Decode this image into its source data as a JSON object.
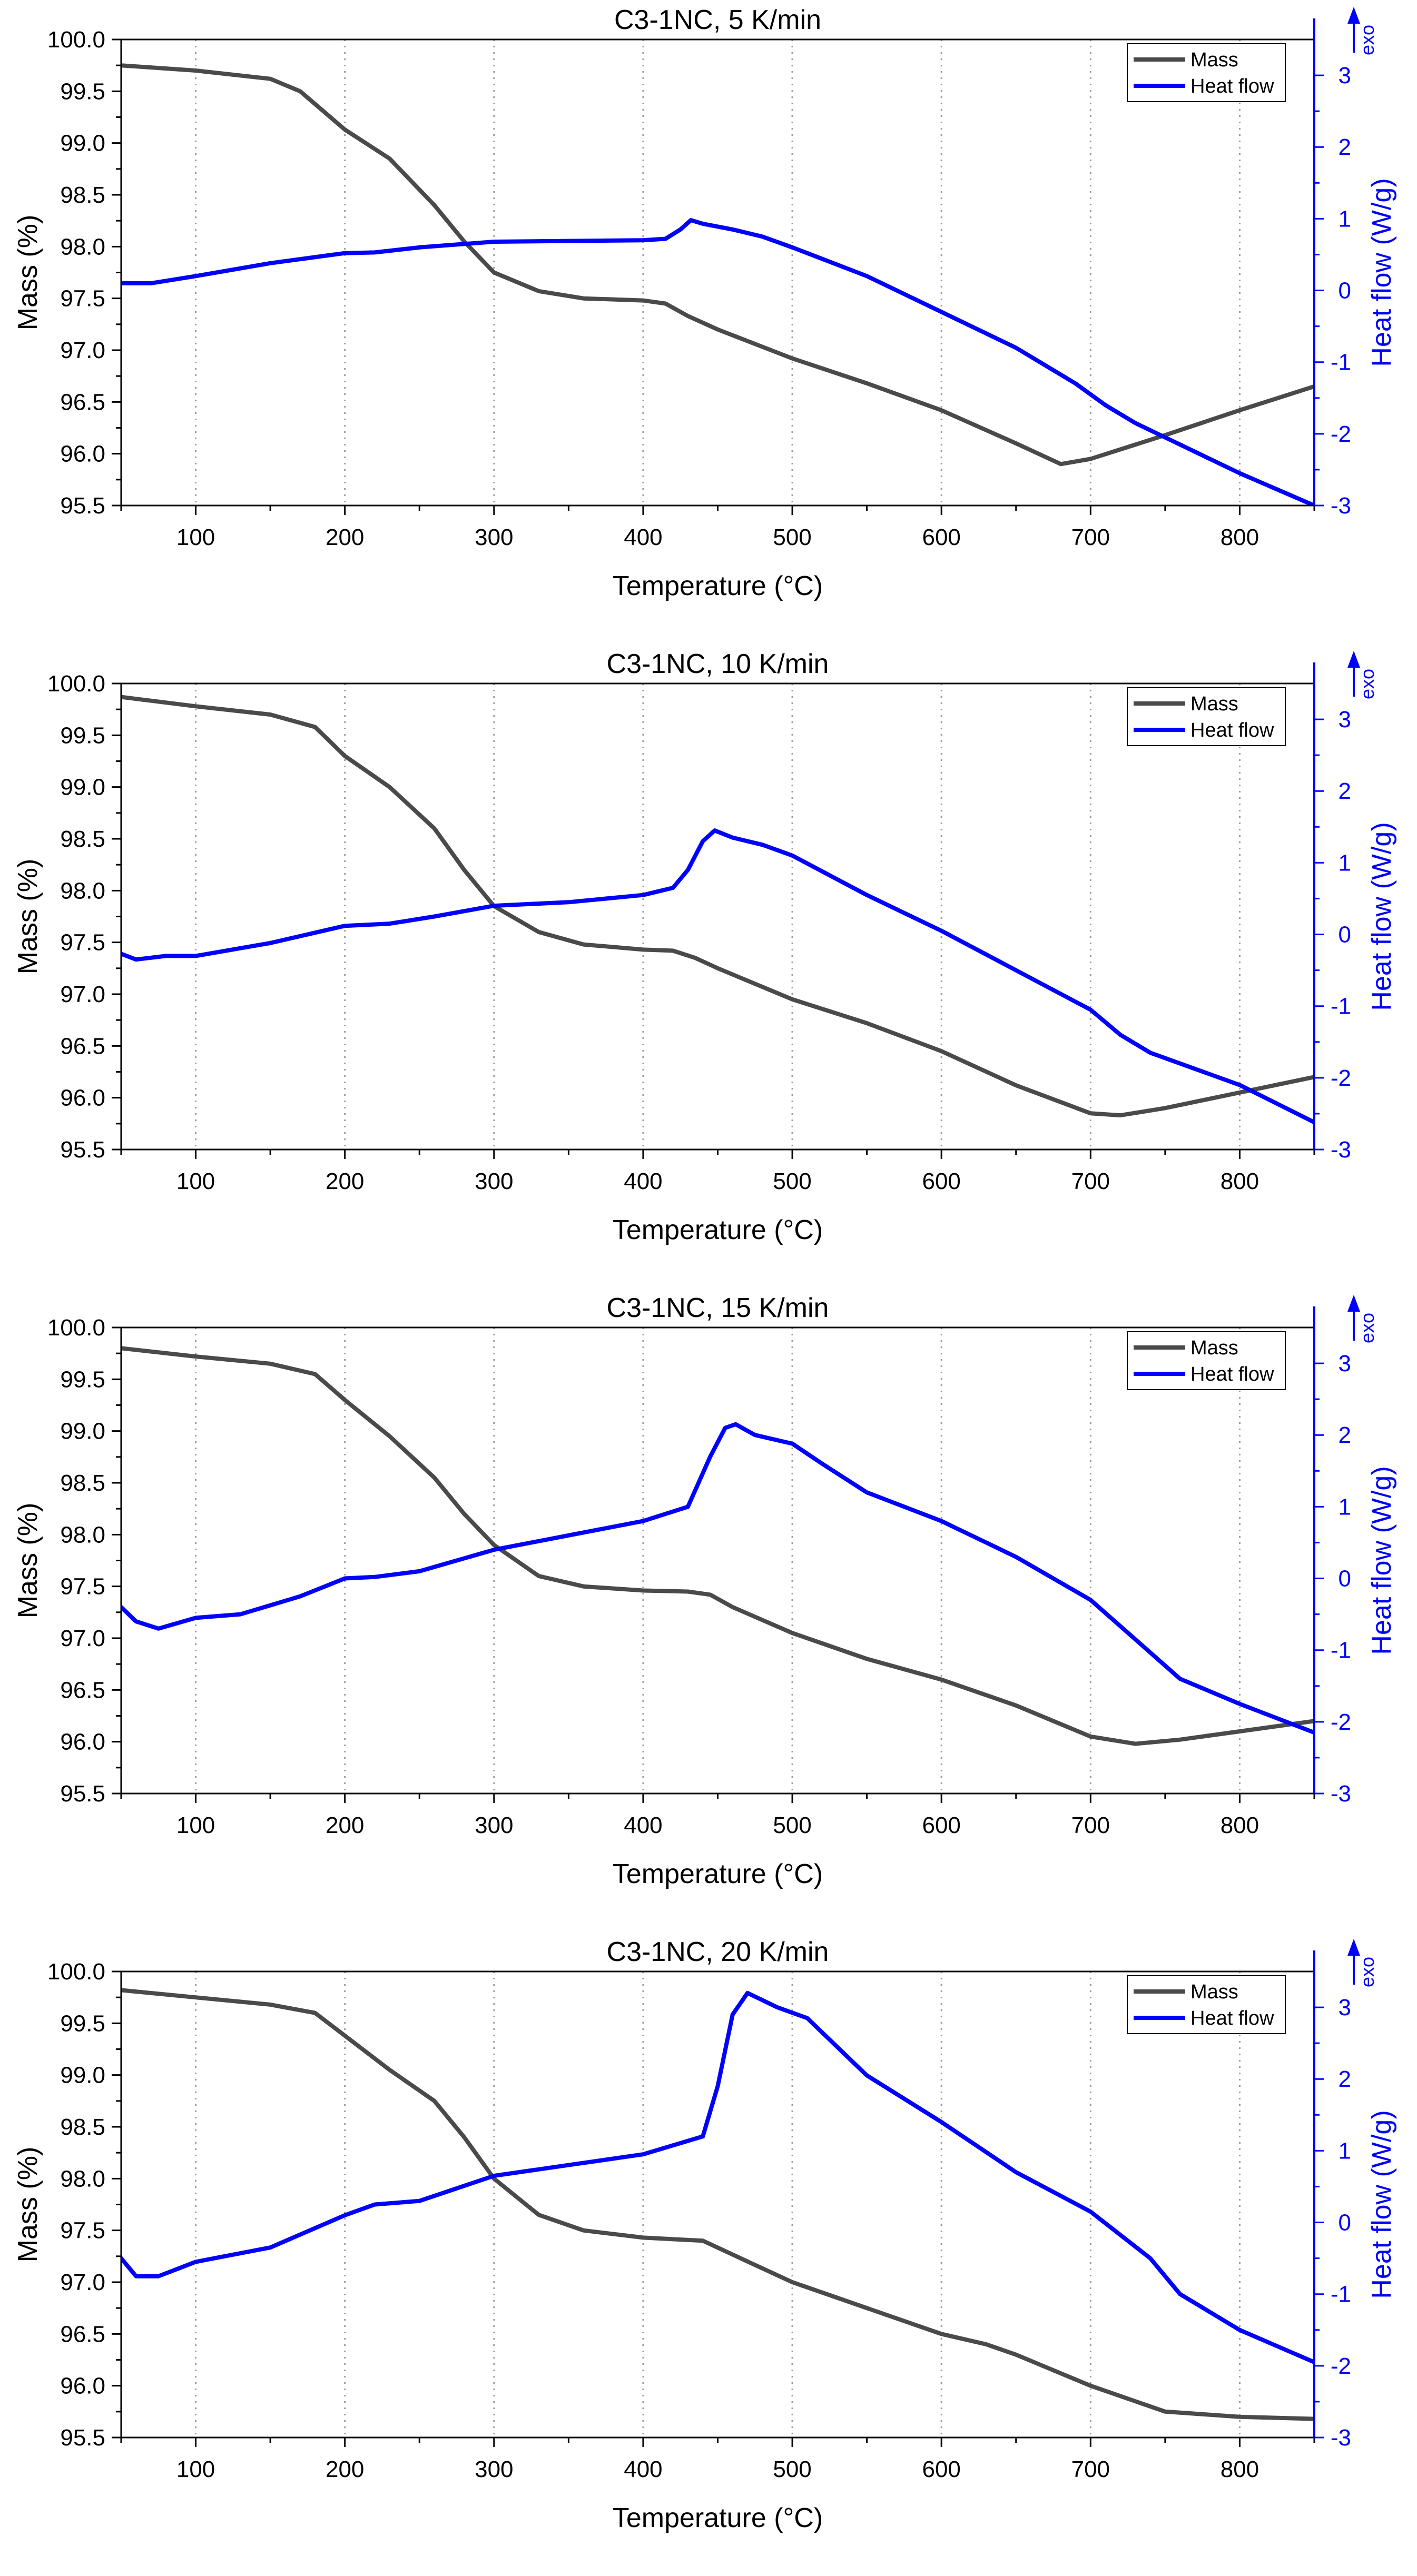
{
  "colors": {
    "mass": "#4a4a4a",
    "heat": "#0000ff",
    "axis": "#000000",
    "grid": "#9a9a9a"
  },
  "chart_data": [
    {
      "type": "line",
      "title": "C3-1NC, 5 K/min",
      "xlabel": "Temperature (°C)",
      "ylabel_left": "Mass (%)",
      "ylabel_right": "Heat flow (W/g)",
      "exo_label": "exo",
      "xlim": [
        50,
        850
      ],
      "ylim_left": [
        95.5,
        100.0
      ],
      "ylim_right": [
        -3,
        3.5
      ],
      "x_ticks": [
        100,
        200,
        300,
        400,
        500,
        600,
        700,
        800
      ],
      "y_left_ticks": [
        "95.5",
        "96.0",
        "96.5",
        "97.0",
        "97.5",
        "98.0",
        "98.5",
        "99.0",
        "99.5",
        "100.0"
      ],
      "y_right_ticks": [
        "-3",
        "-2",
        "-1",
        "0",
        "1",
        "2",
        "3"
      ],
      "grid": "vertical dotted",
      "legend_position": "top-right",
      "series": [
        {
          "name": "Mass",
          "axis": "left",
          "color": "#4a4a4a",
          "x": [
            50,
            100,
            150,
            170,
            200,
            230,
            260,
            280,
            300,
            330,
            360,
            400,
            415,
            430,
            450,
            500,
            550,
            600,
            650,
            680,
            700,
            750,
            800,
            850
          ],
          "y": [
            99.75,
            99.7,
            99.62,
            99.5,
            99.13,
            98.85,
            98.4,
            98.05,
            97.75,
            97.57,
            97.5,
            97.48,
            97.45,
            97.33,
            97.2,
            96.92,
            96.68,
            96.42,
            96.1,
            95.9,
            95.95,
            96.18,
            96.42,
            96.65
          ]
        },
        {
          "name": "Heat flow",
          "axis": "right",
          "color": "#0000ff",
          "x": [
            50,
            70,
            100,
            150,
            200,
            220,
            250,
            300,
            350,
            400,
            415,
            425,
            432,
            440,
            460,
            480,
            500,
            550,
            600,
            650,
            690,
            710,
            730,
            750,
            800,
            850
          ],
          "y": [
            0.1,
            0.1,
            0.2,
            0.38,
            0.52,
            0.53,
            0.6,
            0.68,
            0.69,
            0.7,
            0.72,
            0.85,
            0.98,
            0.93,
            0.85,
            0.75,
            0.6,
            0.2,
            -0.3,
            -0.8,
            -1.3,
            -1.6,
            -1.85,
            -2.05,
            -2.55,
            -3.0
          ]
        }
      ]
    },
    {
      "type": "line",
      "title": "C3-1NC, 10 K/min",
      "xlabel": "Temperature (°C)",
      "ylabel_left": "Mass (%)",
      "ylabel_right": "Heat flow (W/g)",
      "exo_label": "exo",
      "xlim": [
        50,
        850
      ],
      "ylim_left": [
        95.5,
        100.0
      ],
      "ylim_right": [
        -3,
        3.5
      ],
      "x_ticks": [
        100,
        200,
        300,
        400,
        500,
        600,
        700,
        800
      ],
      "y_left_ticks": [
        "95.5",
        "96.0",
        "96.5",
        "97.0",
        "97.5",
        "98.0",
        "98.5",
        "99.0",
        "99.5",
        "100.0"
      ],
      "y_right_ticks": [
        "-3",
        "-2",
        "-1",
        "0",
        "1",
        "2",
        "3"
      ],
      "grid": "vertical dotted",
      "legend_position": "top-right",
      "series": [
        {
          "name": "Mass",
          "axis": "left",
          "color": "#4a4a4a",
          "x": [
            50,
            100,
            150,
            180,
            200,
            230,
            260,
            280,
            300,
            330,
            360,
            400,
            420,
            435,
            450,
            500,
            550,
            600,
            650,
            700,
            720,
            750,
            800,
            850
          ],
          "y": [
            99.87,
            99.78,
            99.7,
            99.58,
            99.3,
            99.0,
            98.6,
            98.2,
            97.85,
            97.6,
            97.48,
            97.43,
            97.42,
            97.35,
            97.25,
            96.95,
            96.72,
            96.45,
            96.12,
            95.85,
            95.83,
            95.9,
            96.05,
            96.2
          ]
        },
        {
          "name": "Heat flow",
          "axis": "right",
          "color": "#0000ff",
          "x": [
            50,
            60,
            80,
            100,
            150,
            200,
            230,
            260,
            300,
            350,
            400,
            420,
            430,
            440,
            448,
            460,
            480,
            500,
            550,
            600,
            650,
            700,
            720,
            740,
            800,
            850
          ],
          "y": [
            -0.27,
            -0.35,
            -0.3,
            -0.3,
            -0.12,
            0.12,
            0.15,
            0.25,
            0.4,
            0.45,
            0.55,
            0.65,
            0.9,
            1.3,
            1.45,
            1.35,
            1.25,
            1.1,
            0.55,
            0.05,
            -0.5,
            -1.05,
            -1.4,
            -1.65,
            -2.1,
            -2.62
          ]
        }
      ]
    },
    {
      "type": "line",
      "title": "C3-1NC, 15 K/min",
      "xlabel": "Temperature (°C)",
      "ylabel_left": "Mass (%)",
      "ylabel_right": "Heat flow (W/g)",
      "exo_label": "exo",
      "xlim": [
        50,
        850
      ],
      "ylim_left": [
        95.5,
        100.0
      ],
      "ylim_right": [
        -3,
        3.5
      ],
      "x_ticks": [
        100,
        200,
        300,
        400,
        500,
        600,
        700,
        800
      ],
      "y_left_ticks": [
        "95.5",
        "96.0",
        "96.5",
        "97.0",
        "97.5",
        "98.0",
        "98.5",
        "99.0",
        "99.5",
        "100.0"
      ],
      "y_right_ticks": [
        "-3",
        "-2",
        "-1",
        "0",
        "1",
        "2",
        "3"
      ],
      "grid": "vertical dotted",
      "legend_position": "top-right",
      "series": [
        {
          "name": "Mass",
          "axis": "left",
          "color": "#4a4a4a",
          "x": [
            50,
            100,
            150,
            180,
            200,
            230,
            260,
            280,
            300,
            330,
            360,
            400,
            430,
            445,
            460,
            500,
            550,
            600,
            650,
            700,
            730,
            760,
            800,
            850
          ],
          "y": [
            99.8,
            99.72,
            99.65,
            99.55,
            99.3,
            98.95,
            98.55,
            98.2,
            97.9,
            97.6,
            97.5,
            97.46,
            97.45,
            97.42,
            97.3,
            97.05,
            96.8,
            96.6,
            96.35,
            96.05,
            95.98,
            96.02,
            96.1,
            96.2
          ]
        },
        {
          "name": "Heat flow",
          "axis": "right",
          "color": "#0000ff",
          "x": [
            50,
            60,
            75,
            100,
            130,
            170,
            200,
            220,
            250,
            300,
            350,
            400,
            430,
            445,
            455,
            462,
            475,
            500,
            520,
            550,
            600,
            650,
            700,
            730,
            760,
            800,
            850
          ],
          "y": [
            -0.4,
            -0.6,
            -0.7,
            -0.55,
            -0.5,
            -0.25,
            0.0,
            0.02,
            0.1,
            0.4,
            0.6,
            0.8,
            1.0,
            1.7,
            2.1,
            2.15,
            2.0,
            1.88,
            1.6,
            1.2,
            0.8,
            0.3,
            -0.3,
            -0.85,
            -1.4,
            -1.75,
            -2.15
          ]
        }
      ]
    },
    {
      "type": "line",
      "title": "C3-1NC, 20 K/min",
      "xlabel": "Temperature (°C)",
      "ylabel_left": "Mass (%)",
      "ylabel_right": "Heat flow (W/g)",
      "exo_label": "exo",
      "xlim": [
        50,
        850
      ],
      "ylim_left": [
        95.5,
        100.0
      ],
      "ylim_right": [
        -3,
        3.5
      ],
      "x_ticks": [
        100,
        200,
        300,
        400,
        500,
        600,
        700,
        800
      ],
      "y_left_ticks": [
        "95.5",
        "96.0",
        "96.5",
        "97.0",
        "97.5",
        "98.0",
        "98.5",
        "99.0",
        "99.5",
        "100.0"
      ],
      "y_right_ticks": [
        "-3",
        "-2",
        "-1",
        "0",
        "1",
        "2",
        "3"
      ],
      "grid": "vertical dotted",
      "legend_position": "top-right",
      "series": [
        {
          "name": "Mass",
          "axis": "left",
          "color": "#4a4a4a",
          "x": [
            50,
            100,
            150,
            180,
            200,
            230,
            260,
            280,
            300,
            330,
            360,
            400,
            440,
            455,
            470,
            500,
            550,
            600,
            630,
            650,
            700,
            750,
            800,
            850
          ],
          "y": [
            99.82,
            99.75,
            99.68,
            99.6,
            99.38,
            99.05,
            98.75,
            98.4,
            98.0,
            97.65,
            97.5,
            97.43,
            97.4,
            97.3,
            97.2,
            97.0,
            96.75,
            96.5,
            96.4,
            96.3,
            96.0,
            95.75,
            95.7,
            95.68
          ]
        },
        {
          "name": "Heat flow",
          "axis": "right",
          "color": "#0000ff",
          "x": [
            50,
            60,
            75,
            100,
            150,
            200,
            220,
            250,
            300,
            350,
            400,
            440,
            450,
            460,
            470,
            490,
            510,
            550,
            600,
            650,
            700,
            740,
            760,
            800,
            850
          ],
          "y": [
            -0.5,
            -0.75,
            -0.75,
            -0.55,
            -0.35,
            0.1,
            0.25,
            0.3,
            0.65,
            0.8,
            0.95,
            1.2,
            1.9,
            2.9,
            3.2,
            3.0,
            2.85,
            2.05,
            1.4,
            0.7,
            0.15,
            -0.5,
            -1.0,
            -1.5,
            -1.95
          ]
        }
      ]
    }
  ]
}
